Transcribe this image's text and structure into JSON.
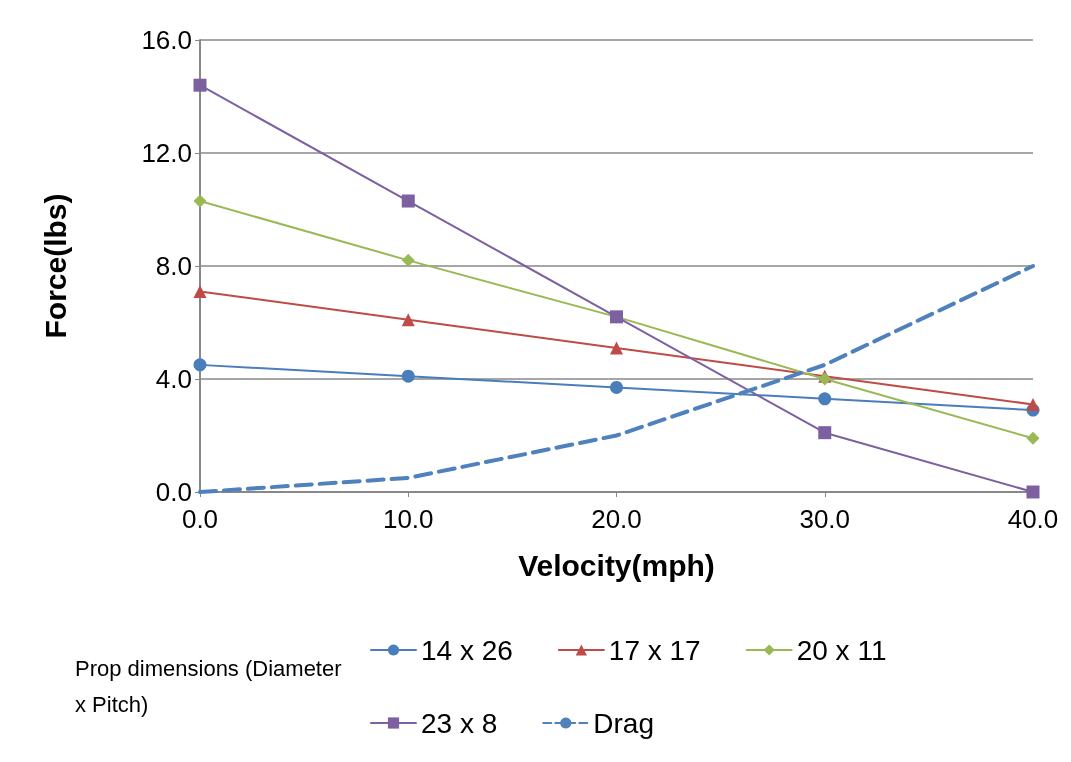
{
  "chart_data": {
    "type": "line",
    "xlabel": "Velocity(mph)",
    "ylabel": "Force(lbs)",
    "legend_title": "Prop dimensions (Diameter x Pitch)",
    "x": [
      0,
      10,
      20,
      30,
      40
    ],
    "series": [
      {
        "name": "14 x 26",
        "color": "#4a7ebb",
        "marker": "circle",
        "values": [
          4.5,
          4.1,
          3.7,
          3.3,
          2.9
        ]
      },
      {
        "name": "17 x 17",
        "color": "#be4b48",
        "marker": "triangle",
        "values": [
          7.1,
          6.1,
          5.1,
          4.1,
          3.1
        ]
      },
      {
        "name": "20 x 11",
        "color": "#98b954",
        "marker": "diamond",
        "values": [
          10.3,
          8.2,
          6.2,
          4.0,
          1.9
        ]
      },
      {
        "name": "23 x 8",
        "color": "#7d60a0",
        "marker": "square",
        "values": [
          14.4,
          10.3,
          6.2,
          2.1,
          0
        ]
      },
      {
        "name": "Drag",
        "color": "#4f81bd",
        "marker": "none",
        "line_style": "dashed",
        "values": [
          0,
          0.5,
          2.0,
          4.5,
          8.0
        ]
      }
    ],
    "xlim": [
      0,
      40
    ],
    "xticks": [
      {
        "value": 0,
        "label": "0.0"
      },
      {
        "value": 10,
        "label": "10.0"
      },
      {
        "value": 20,
        "label": "20.0"
      },
      {
        "value": 30,
        "label": "30.0"
      },
      {
        "value": 40,
        "label": "40.0"
      }
    ],
    "ylim": [
      0,
      16
    ],
    "yticks": [
      {
        "value": 0,
        "label": "0.0"
      },
      {
        "value": 4,
        "label": "4.0"
      },
      {
        "value": 8,
        "label": "8.0"
      },
      {
        "value": 12,
        "label": "12.0"
      },
      {
        "value": 16,
        "label": "16.0"
      }
    ],
    "grid": "y",
    "legend": "bottom"
  }
}
